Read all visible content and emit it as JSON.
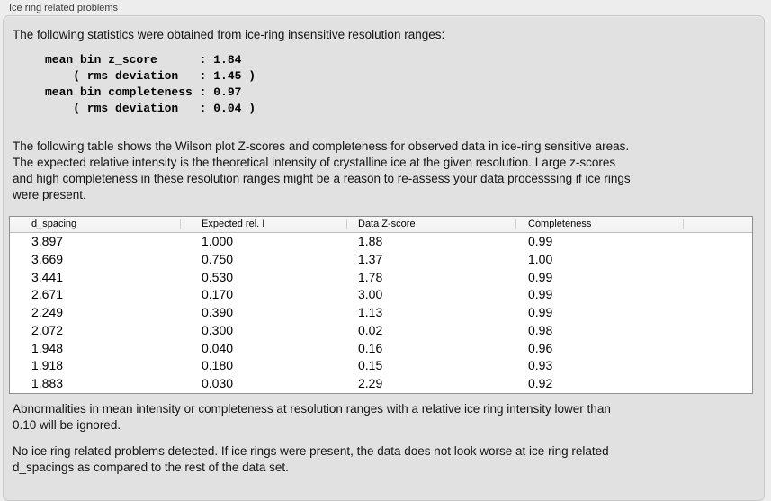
{
  "panel": {
    "title": "Ice ring related problems"
  },
  "sections": {
    "intro": "The following statistics were obtained from ice-ring insensitive resolution ranges:",
    "stats": "mean bin z_score      : 1.84\n    ( rms deviation   : 1.45 )\nmean bin completeness : 0.97\n    ( rms deviation   : 0.04 )",
    "table_description": "The following table shows the Wilson plot Z-scores and completeness for observed data in ice-ring sensitive areas.\nThe expected relative intensity is the theoretical intensity of crystalline ice at the given resolution. Large z-scores\nand high completeness in these resolution ranges might be a reason to re-assess your data processsing if ice rings\nwere present.",
    "ignore_note": "Abnormalities in mean intensity or completeness at resolution ranges with a relative ice ring intensity lower than\n0.10 will be ignored.",
    "conclusion": "No ice ring related problems detected. If ice rings were present, the data does not look worse at ice ring related\nd_spacings as compared to the rest of the data set."
  },
  "table": {
    "columns": [
      "d_spacing",
      "Expected rel. I",
      "Data Z-score",
      "Completeness",
      ""
    ],
    "rows": [
      [
        "3.897",
        "1.000",
        "1.88",
        "0.99"
      ],
      [
        "3.669",
        "0.750",
        "1.37",
        "1.00"
      ],
      [
        "3.441",
        "0.530",
        "1.78",
        "0.99"
      ],
      [
        "2.671",
        "0.170",
        "3.00",
        "0.99"
      ],
      [
        "2.249",
        "0.390",
        "1.13",
        "0.99"
      ],
      [
        "2.072",
        "0.300",
        "0.02",
        "0.98"
      ],
      [
        "1.948",
        "0.040",
        "0.16",
        "0.96"
      ],
      [
        "1.918",
        "0.180",
        "0.15",
        "0.93"
      ],
      [
        "1.883",
        "0.030",
        "2.29",
        "0.92"
      ]
    ]
  },
  "colors": {
    "page_background": "#ededed",
    "groupbox_background": "#e1e1e1",
    "groupbox_border": "#c9c9c9",
    "table_border": "#8f8f8f",
    "table_header_background": "#f4f4f4",
    "text": "#141414"
  }
}
